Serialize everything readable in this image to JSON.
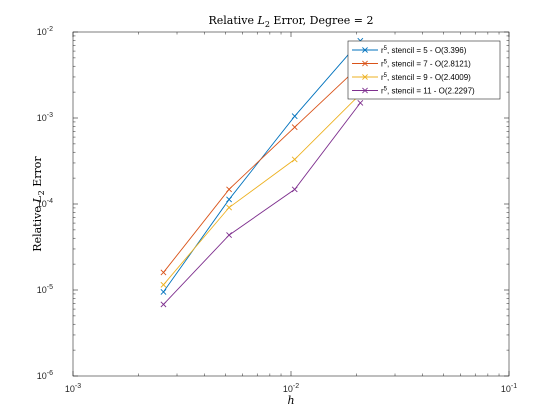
{
  "chart_data": {
    "type": "line",
    "title": {
      "prefix": "Relative ",
      "sym": "L",
      "sub": "2",
      "suffix": " Error, Degree = 2"
    },
    "xlabel": "h",
    "ylabel": {
      "prefix": "Relative ",
      "sym": "L",
      "sub": "2",
      "suffix": " Error"
    },
    "xscale": "log",
    "yscale": "log",
    "xlim": [
      0.001,
      0.1
    ],
    "ylim": [
      1e-06,
      0.01
    ],
    "x_ticks": [
      {
        "value": 0.001,
        "base": "10",
        "exp": "-3"
      },
      {
        "value": 0.01,
        "base": "10",
        "exp": "-2"
      },
      {
        "value": 0.1,
        "base": "10",
        "exp": "-1"
      }
    ],
    "y_ticks": [
      {
        "value": 1e-06,
        "base": "10",
        "exp": "-6"
      },
      {
        "value": 1e-05,
        "base": "10",
        "exp": "-5"
      },
      {
        "value": 0.0001,
        "base": "10",
        "exp": "-4"
      },
      {
        "value": 0.001,
        "base": "10",
        "exp": "-3"
      },
      {
        "value": 0.01,
        "base": "10",
        "exp": "-2"
      }
    ],
    "grid": false,
    "legend_position": "top-right",
    "x": [
      0.0026,
      0.0052,
      0.0104,
      0.0208
    ],
    "series": [
      {
        "name": "r^5, stencil = 5 - O(3.396)",
        "legend": {
          "base": "r",
          "exp": "5",
          "rest": ", stencil = 5 - O(3.396)"
        },
        "color": "#0072BD",
        "values": [
          9.5e-06,
          0.000113,
          0.00105,
          0.0079
        ]
      },
      {
        "name": "r^5, stencil = 7 - O(2.8121)",
        "legend": {
          "base": "r",
          "exp": "5",
          "rest": ", stencil = 7 - O(2.8121)"
        },
        "color": "#D95319",
        "values": [
          1.6e-05,
          0.000148,
          0.000782,
          0.0041
        ]
      },
      {
        "name": "r^5, stencil = 9 - O(2.4009)",
        "legend": {
          "base": "r",
          "exp": "5",
          "rest": ", stencil = 9 - O(2.4009)"
        },
        "color": "#EDB120",
        "values": [
          1.15e-05,
          9.1e-05,
          0.00033,
          0.0019
        ]
      },
      {
        "name": "r^5, stencil = 11 - O(2.2297)",
        "legend": {
          "base": "r",
          "exp": "5",
          "rest": ", stencil = 11 - O(2.2297)"
        },
        "color": "#7E2F8E",
        "values": [
          6.8e-06,
          4.35e-05,
          0.000148,
          0.0015
        ]
      }
    ]
  }
}
